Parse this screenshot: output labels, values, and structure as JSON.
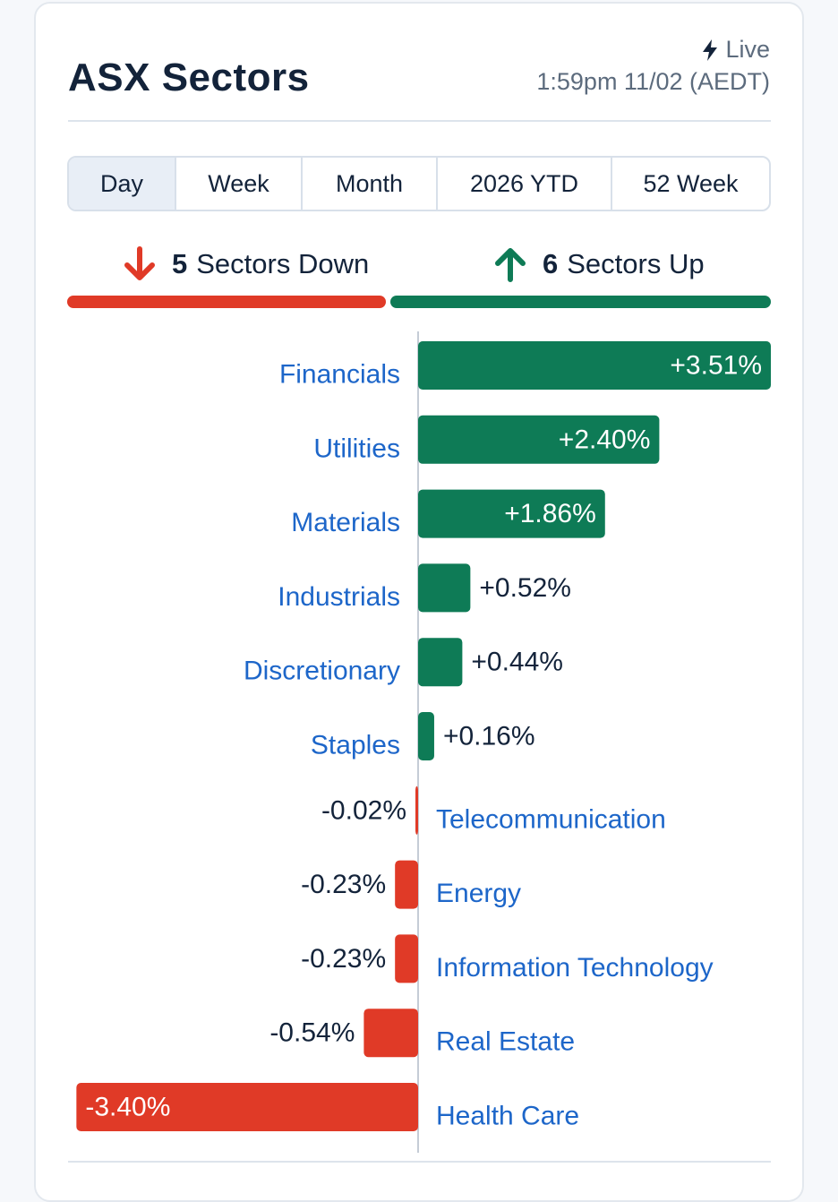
{
  "header": {
    "title": "ASX Sectors",
    "live_label": "Live",
    "timestamp": "1:59pm 11/02 (AEDT)"
  },
  "tabs": [
    {
      "label": "Day",
      "active": true
    },
    {
      "label": "Week",
      "active": false
    },
    {
      "label": "Month",
      "active": false
    },
    {
      "label": "2026 YTD",
      "active": false
    },
    {
      "label": "52 Week",
      "active": false
    }
  ],
  "summary": {
    "down_count": "5",
    "down_label": "Sectors Down",
    "up_count": "6",
    "up_label": "Sectors Up"
  },
  "colors": {
    "up": "#0e7b56",
    "down": "#e03a27",
    "label": "#1d66c9"
  },
  "chart_data": {
    "type": "bar",
    "orientation": "horizontal-diverging",
    "categories": [
      "Financials",
      "Utilities",
      "Materials",
      "Industrials",
      "Discretionary",
      "Staples",
      "Telecommunication",
      "Energy",
      "Information Technology",
      "Real Estate",
      "Health Care"
    ],
    "values": [
      3.51,
      2.4,
      1.86,
      0.52,
      0.44,
      0.16,
      -0.02,
      -0.23,
      -0.23,
      -0.54,
      -3.4
    ],
    "value_labels": [
      "+3.51%",
      "+2.40%",
      "+1.86%",
      "+0.52%",
      "+0.44%",
      "+0.16%",
      "-0.02%",
      "-0.23%",
      "-0.23%",
      "-0.54%",
      "-3.40%"
    ],
    "xlim": [
      -3.51,
      3.51
    ]
  }
}
